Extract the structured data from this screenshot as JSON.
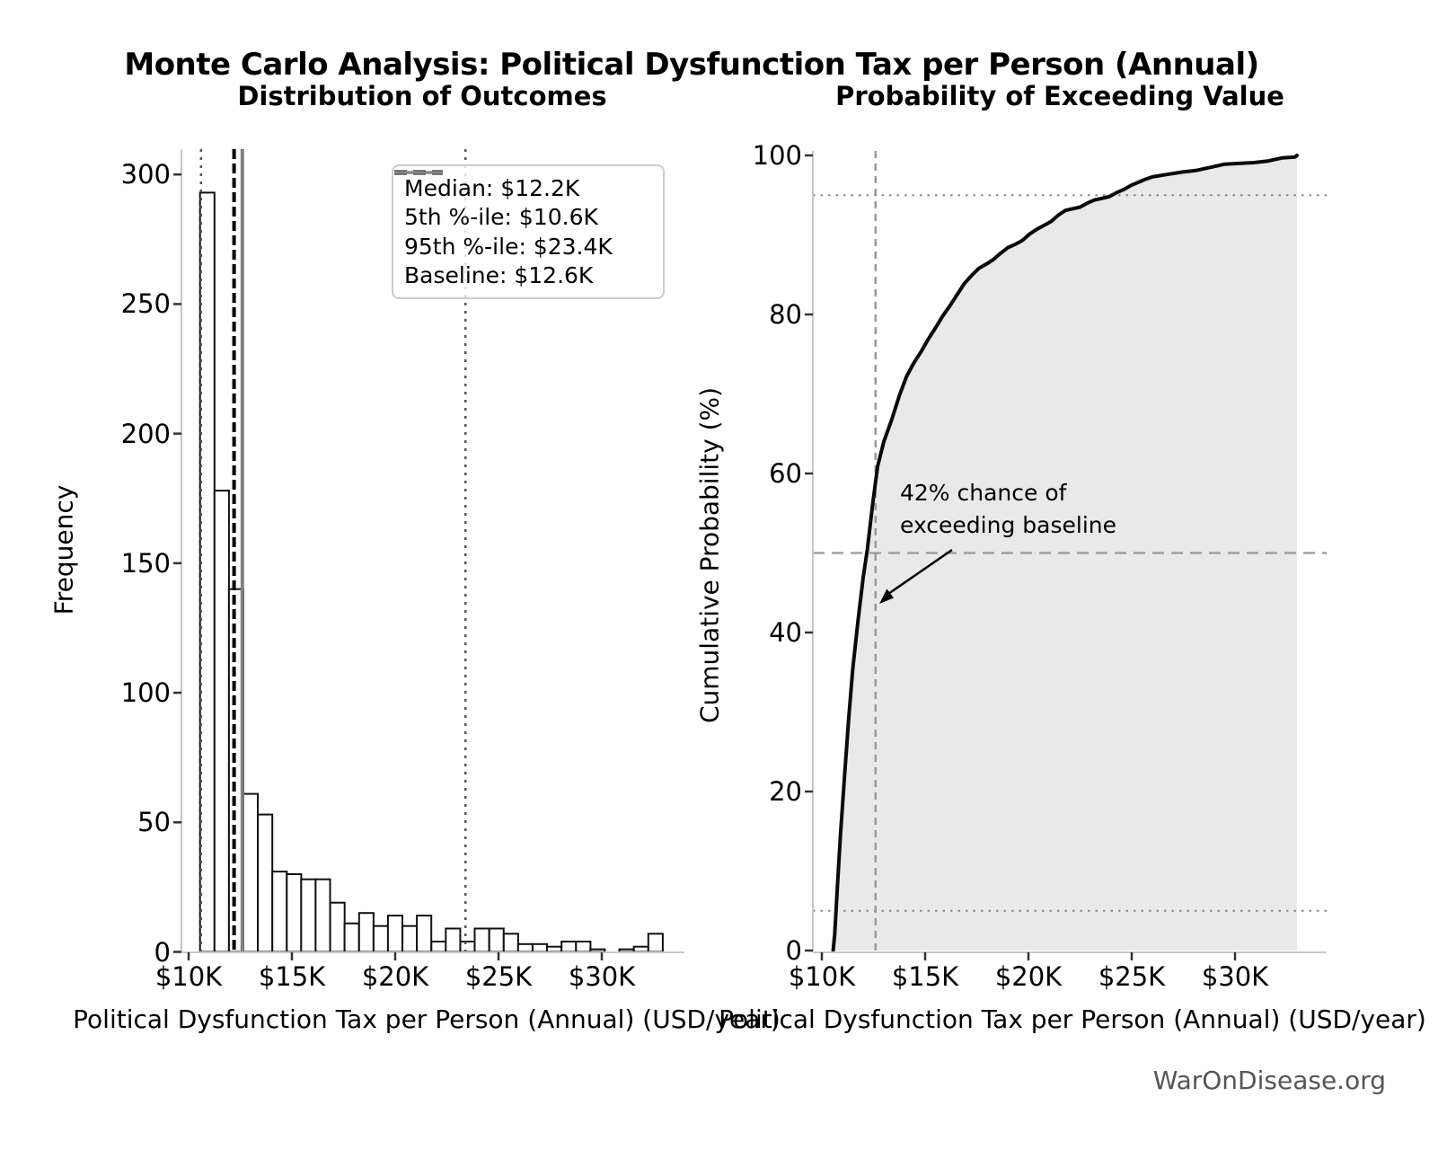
{
  "header": {
    "title": "Monte Carlo Analysis: Political Dysfunction Tax per Person (Annual)"
  },
  "footer": {
    "brand": "WarOnDisease.org"
  },
  "colors": {
    "background": "#ffffff",
    "bar_fill": "#ffffff",
    "bar_edge": "#111111",
    "spine": "#c8c8c8",
    "tick": "#333333",
    "median_line": "#000000",
    "percentile_line": "#555555",
    "baseline_line": "#808080",
    "cdf_line": "#0a0a0a",
    "cdf_fill": "#e9e9e9",
    "guide_line": "#999999",
    "footer_text": "#555555"
  },
  "legend": {
    "entries": [
      {
        "label": "Median: $12.2K",
        "style": "dashed-black"
      },
      {
        "label": "5th %-ile: $10.6K",
        "style": "dotted-gray"
      },
      {
        "label": "95th %-ile: $23.4K",
        "style": "dotted-gray"
      },
      {
        "label": "Baseline: $12.6K",
        "style": "solid-gray"
      }
    ]
  },
  "chart_data": [
    {
      "type": "bar",
      "subtype": "histogram",
      "title": "Distribution of Outcomes",
      "xlabel": "Political Dysfunction Tax per Person (Annual) (USD/year)",
      "ylabel": "Frequency",
      "bin_start_k": 10.55,
      "bin_width_k": 0.7,
      "counts": [
        293,
        178,
        140,
        61,
        53,
        31,
        30,
        28,
        28,
        19,
        11,
        15,
        10,
        14,
        10,
        14,
        4,
        9,
        4,
        9,
        9,
        7,
        3,
        3,
        2,
        4,
        4,
        1,
        0,
        1,
        2,
        7
      ],
      "xticks": [
        {
          "v": 10,
          "label": "$10K"
        },
        {
          "v": 15,
          "label": "$15K"
        },
        {
          "v": 20,
          "label": "$20K"
        },
        {
          "v": 25,
          "label": "$25K"
        },
        {
          "v": 30,
          "label": "$30K"
        }
      ],
      "yticks": [
        0,
        50,
        100,
        150,
        200,
        250,
        300
      ],
      "xlim": [
        9.65,
        34.1
      ],
      "ylim": [
        0,
        310
      ],
      "grid": false,
      "ref_lines": {
        "median_k": 12.2,
        "p5_k": 10.6,
        "p95_k": 23.4,
        "baseline_k": 12.6
      }
    },
    {
      "type": "area",
      "subtype": "cumulative-distribution",
      "title": "Probability of Exceeding Value",
      "xlabel": "Political Dysfunction Tax per Person (Annual) (USD/year)",
      "ylabel": "Cumulative Probability (%)",
      "cdf_points": [
        [
          10.55,
          0
        ],
        [
          10.62,
          2
        ],
        [
          10.75,
          8
        ],
        [
          10.9,
          14.5
        ],
        [
          11.1,
          22
        ],
        [
          11.3,
          29.2
        ],
        [
          11.5,
          35.5
        ],
        [
          11.75,
          41.5
        ],
        [
          12.0,
          46.9
        ],
        [
          12.2,
          50.4
        ],
        [
          12.45,
          56
        ],
        [
          12.7,
          60.9
        ],
        [
          13.0,
          64
        ],
        [
          13.4,
          66.9
        ],
        [
          13.75,
          69.8
        ],
        [
          14.1,
          72.2
        ],
        [
          14.45,
          73.9
        ],
        [
          14.8,
          75.3
        ],
        [
          15.15,
          76.9
        ],
        [
          15.5,
          78.3
        ],
        [
          15.85,
          79.8
        ],
        [
          16.2,
          81.1
        ],
        [
          16.55,
          82.5
        ],
        [
          16.9,
          83.9
        ],
        [
          17.25,
          84.9
        ],
        [
          17.6,
          85.8
        ],
        [
          18.0,
          86.4
        ],
        [
          18.3,
          86.9
        ],
        [
          18.65,
          87.7
        ],
        [
          19.0,
          88.4
        ],
        [
          19.35,
          88.8
        ],
        [
          19.7,
          89.3
        ],
        [
          20.05,
          90.1
        ],
        [
          20.4,
          90.7
        ],
        [
          20.75,
          91.2
        ],
        [
          21.1,
          91.7
        ],
        [
          21.45,
          92.5
        ],
        [
          21.8,
          93.1
        ],
        [
          22.15,
          93.3
        ],
        [
          22.5,
          93.5
        ],
        [
          22.85,
          94.0
        ],
        [
          23.2,
          94.4
        ],
        [
          23.55,
          94.6
        ],
        [
          23.9,
          94.8
        ],
        [
          24.25,
          95.3
        ],
        [
          24.6,
          95.7
        ],
        [
          24.95,
          96.2
        ],
        [
          25.3,
          96.6
        ],
        [
          25.65,
          97.0
        ],
        [
          26.0,
          97.3
        ],
        [
          26.7,
          97.6
        ],
        [
          27.4,
          97.9
        ],
        [
          28.1,
          98.1
        ],
        [
          28.8,
          98.5
        ],
        [
          29.5,
          98.9
        ],
        [
          30.2,
          99.0
        ],
        [
          30.9,
          99.1
        ],
        [
          31.6,
          99.3
        ],
        [
          32.3,
          99.7
        ],
        [
          32.9,
          99.8
        ],
        [
          33.0,
          100
        ]
      ],
      "xticks": [
        {
          "v": 10,
          "label": "$10K"
        },
        {
          "v": 15,
          "label": "$15K"
        },
        {
          "v": 20,
          "label": "$20K"
        },
        {
          "v": 25,
          "label": "$25K"
        },
        {
          "v": 30,
          "label": "$30K"
        }
      ],
      "yticks": [
        0,
        20,
        40,
        60,
        80,
        100
      ],
      "xlim": [
        9.6,
        34.0
      ],
      "ylim": [
        0,
        100
      ],
      "grid": false,
      "ref_lines": {
        "baseline_k": 12.6,
        "h_dashed_pct": 50,
        "h_dotted_upper_pct": 95,
        "h_dotted_lower_pct": 5
      },
      "annotation": {
        "line1": "42% chance of",
        "line2": "exceeding baseline",
        "exceed_probability_pct": 42
      }
    }
  ]
}
